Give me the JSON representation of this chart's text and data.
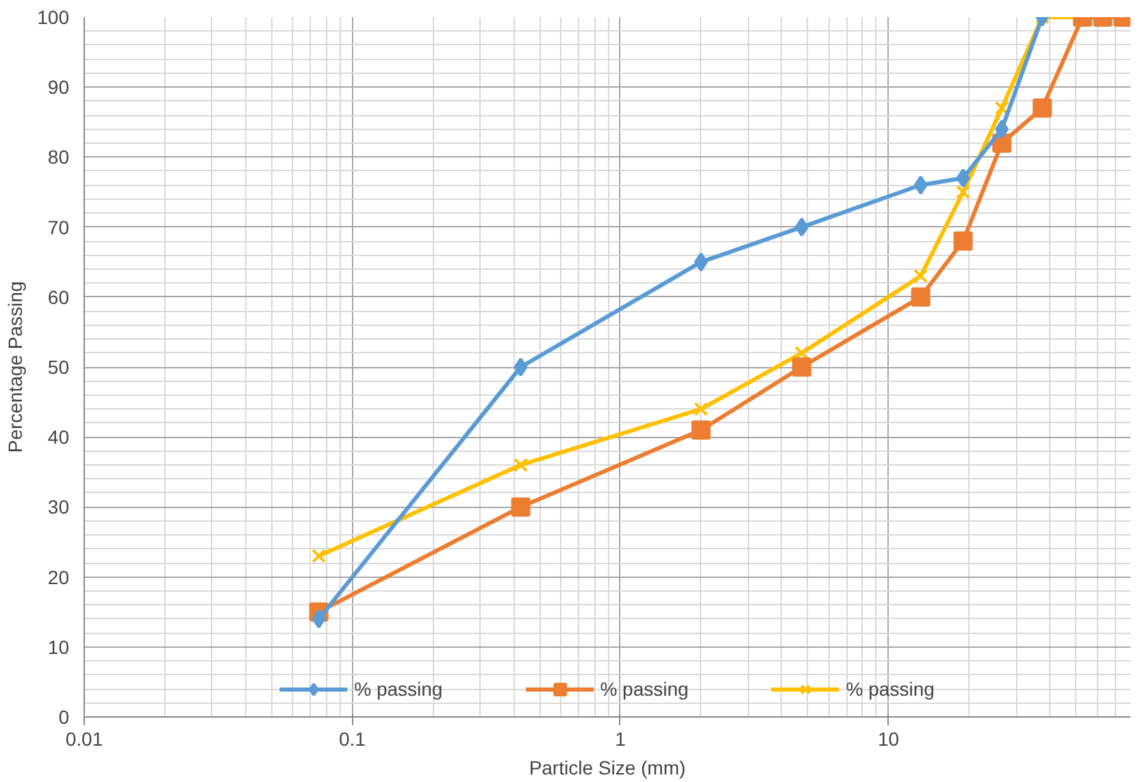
{
  "chart_data": {
    "type": "line",
    "xlabel": "Particle Size (mm)",
    "ylabel": "Percentage Passing",
    "log": "x",
    "xlim": [
      0.01,
      80
    ],
    "xticks": [
      0.01,
      0.1,
      1,
      10
    ],
    "ylim": [
      0,
      100
    ],
    "yticks": [
      0,
      10,
      20,
      30,
      40,
      50,
      60,
      70,
      80,
      90,
      100
    ],
    "grid": true,
    "legend": "bottom",
    "line_style": "solid",
    "series": [
      {
        "name": "% passing",
        "color": "#5b9bd5",
        "marker": "diamond",
        "x": [
          0.075,
          0.425,
          2,
          4.75,
          13.2,
          19,
          26.5,
          37.5
        ],
        "values": [
          14,
          50,
          65,
          70,
          76,
          77,
          84,
          100
        ]
      },
      {
        "name": "% passing",
        "color": "#ed7d31",
        "marker": "square",
        "x": [
          0.075,
          0.425,
          2,
          4.75,
          13.2,
          19,
          26.5,
          37.5,
          53,
          63,
          75
        ],
        "values": [
          15,
          30,
          41,
          50,
          60,
          68,
          82,
          87,
          100,
          100,
          100
        ]
      },
      {
        "name": "% passing",
        "color": "#ffc000",
        "marker": "cross",
        "x": [
          0.075,
          0.425,
          2,
          4.75,
          13.2,
          19,
          26.5,
          37.5,
          53,
          63,
          75
        ],
        "values": [
          23,
          36,
          44,
          52,
          63,
          75,
          87,
          100,
          100,
          100,
          100
        ]
      }
    ]
  }
}
